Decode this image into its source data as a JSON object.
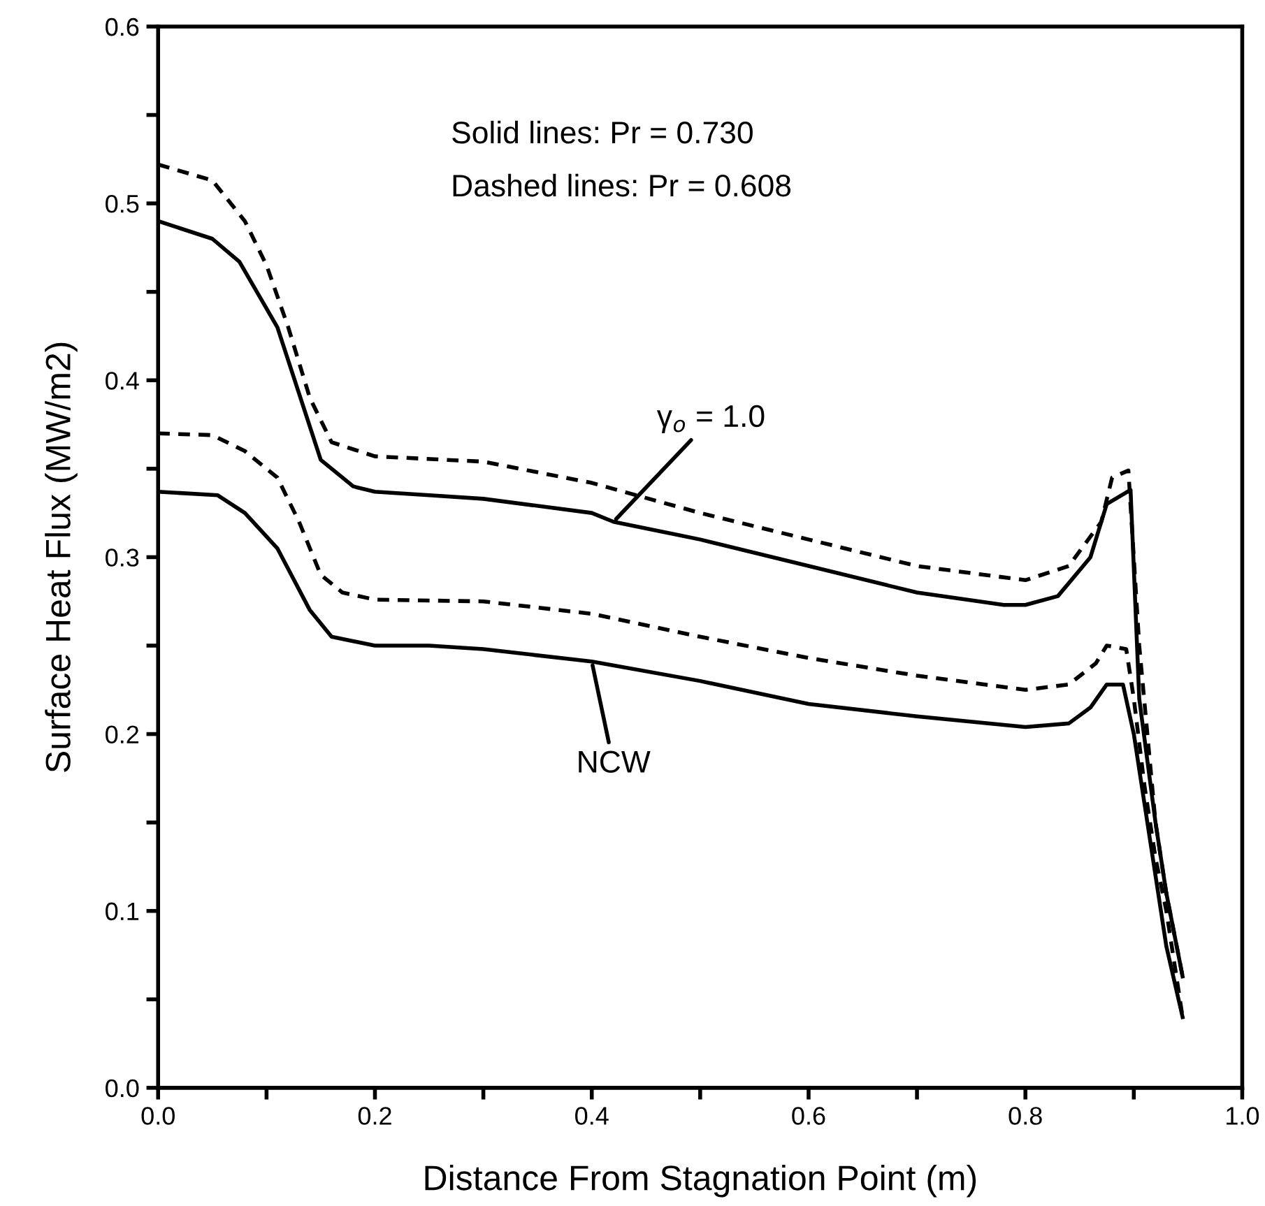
{
  "chart_data": {
    "type": "line",
    "xlabel": "Distance From Stagnation Point (m)",
    "ylabel": "Surface Heat Flux (MW/m2)",
    "xlim": [
      0.0,
      1.0
    ],
    "ylim": [
      0.0,
      0.6
    ],
    "xticks": [
      {
        "value": 0,
        "label": "0.0"
      },
      {
        "value": 0.1,
        "label": null
      },
      0.2,
      {
        "value": 0.3,
        "label": null
      },
      0.4,
      {
        "value": 0.5,
        "label": null
      },
      0.6,
      {
        "value": 0.7,
        "label": null
      },
      0.8,
      {
        "value": 0.9,
        "label": null
      },
      {
        "value": 1,
        "label": "1.0"
      }
    ],
    "yticks": [
      {
        "value": 0,
        "label": "0.0"
      },
      {
        "value": 0.05,
        "label": null
      },
      0.1,
      {
        "value": 0.15,
        "label": null
      },
      0.2,
      {
        "value": 0.25,
        "label": null
      },
      0.3,
      {
        "value": 0.35,
        "label": null
      },
      0.4,
      {
        "value": 0.45,
        "label": null
      },
      0.5,
      {
        "value": 0.55,
        "label": null
      },
      0.6
    ],
    "grid": false,
    "series": [
      {
        "color": "#000000",
        "line_style": "dashed",
        "x": [
          0.0,
          0.05,
          0.08,
          0.1,
          0.12,
          0.14,
          0.16,
          0.2,
          0.3,
          0.4,
          0.5,
          0.6,
          0.7,
          0.8,
          0.84,
          0.87,
          0.88,
          0.895,
          0.905,
          0.92,
          0.93,
          0.945
        ],
        "values": [
          0.522,
          0.513,
          0.49,
          0.465,
          0.43,
          0.39,
          0.365,
          0.357,
          0.354,
          0.342,
          0.325,
          0.31,
          0.295,
          0.287,
          0.295,
          0.32,
          0.345,
          0.349,
          0.25,
          0.15,
          0.11,
          0.063
        ]
      },
      {
        "color": "#000000",
        "line_style": "solid",
        "x": [
          0.0,
          0.05,
          0.075,
          0.11,
          0.15,
          0.18,
          0.2,
          0.25,
          0.3,
          0.4,
          0.42,
          0.5,
          0.6,
          0.7,
          0.78,
          0.8,
          0.83,
          0.86,
          0.875,
          0.897,
          0.905,
          0.92,
          0.93,
          0.945
        ],
        "values": [
          0.49,
          0.48,
          0.467,
          0.43,
          0.355,
          0.34,
          0.337,
          0.335,
          0.333,
          0.325,
          0.32,
          0.31,
          0.295,
          0.28,
          0.273,
          0.273,
          0.278,
          0.3,
          0.33,
          0.338,
          0.22,
          0.15,
          0.11,
          0.063
        ]
      },
      {
        "color": "#000000",
        "line_style": "dashed",
        "x": [
          0.0,
          0.05,
          0.08,
          0.11,
          0.13,
          0.15,
          0.17,
          0.2,
          0.3,
          0.4,
          0.5,
          0.6,
          0.7,
          0.8,
          0.84,
          0.865,
          0.875,
          0.893,
          0.9,
          0.91,
          0.92,
          0.93,
          0.945
        ],
        "values": [
          0.37,
          0.369,
          0.36,
          0.345,
          0.32,
          0.29,
          0.28,
          0.276,
          0.275,
          0.268,
          0.255,
          0.243,
          0.233,
          0.225,
          0.228,
          0.24,
          0.25,
          0.248,
          0.22,
          0.17,
          0.13,
          0.1,
          0.04
        ]
      },
      {
        "color": "#000000",
        "line_style": "solid",
        "x": [
          0.0,
          0.055,
          0.08,
          0.11,
          0.14,
          0.16,
          0.2,
          0.25,
          0.3,
          0.4,
          0.5,
          0.6,
          0.7,
          0.8,
          0.84,
          0.86,
          0.875,
          0.89,
          0.9,
          0.91,
          0.92,
          0.93,
          0.945
        ],
        "values": [
          0.337,
          0.335,
          0.325,
          0.305,
          0.27,
          0.255,
          0.25,
          0.25,
          0.248,
          0.241,
          0.23,
          0.217,
          0.21,
          0.204,
          0.206,
          0.215,
          0.228,
          0.228,
          0.2,
          0.16,
          0.12,
          0.08,
          0.04
        ]
      }
    ],
    "annotations": [
      "Solid lines: Pr = 0.730",
      "Dashed lines: Pr = 0.608",
      {
        "text": "γ$_{o}$ = 1.0",
        "x": 0.42,
        "y": 0.32
      },
      {
        "text": "NCW",
        "x": 0.4,
        "y": 0.241
      }
    ]
  }
}
